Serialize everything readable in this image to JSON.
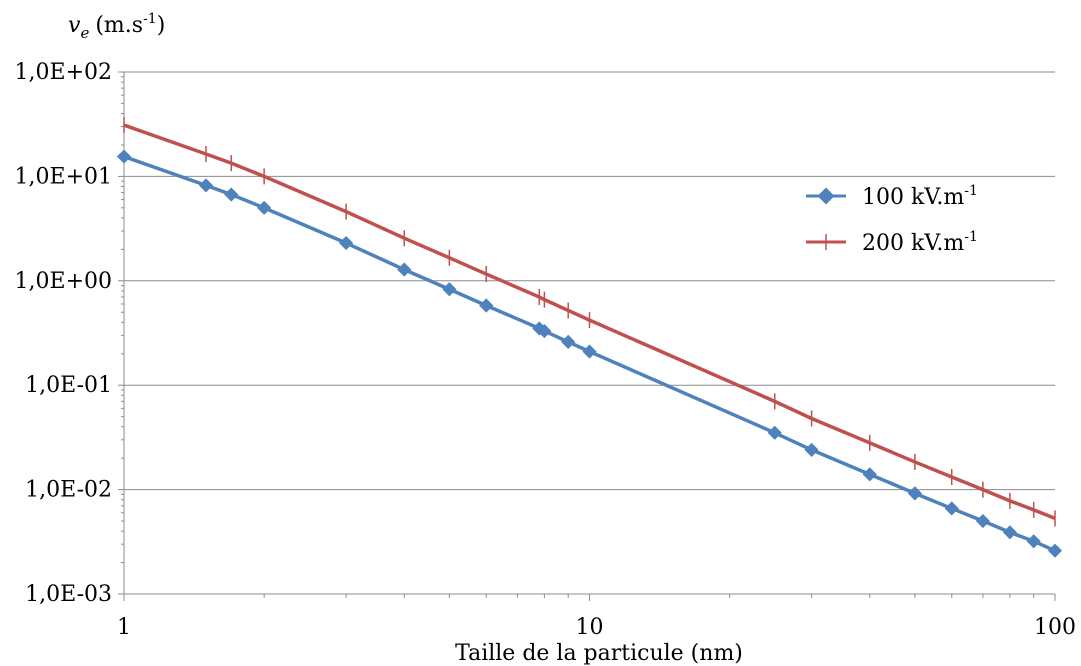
{
  "chart_data": {
    "type": "line",
    "title": "",
    "xlabel": "Taille de la particule (nm)",
    "ylabel": {
      "symbol": "v",
      "subscript": "e",
      "unit": "(m.s",
      "unit_sup": "-1",
      "unit_end": ")"
    },
    "x_scale": "log",
    "y_scale": "log",
    "xlim": [
      1,
      100
    ],
    "ylim": [
      0.001,
      100
    ],
    "x_ticks": [
      1,
      10,
      100
    ],
    "x_tick_labels": [
      "1",
      "10",
      "100"
    ],
    "y_ticks": [
      0.001,
      0.01,
      0.1,
      1,
      10,
      100
    ],
    "y_tick_labels": [
      "1,0E-03",
      "1,0E-02",
      "1,0E-01",
      "1,0E+00",
      "1,0E+01",
      "1,0E+02"
    ],
    "grid": "horizontal",
    "legend_position": "right",
    "series": [
      {
        "name": "100 kV.m",
        "name_sup": "-1",
        "color": "#4f81bd",
        "marker": "diamond",
        "x": [
          1,
          1.5,
          1.7,
          2,
          3,
          4,
          5,
          6,
          7.8,
          8,
          9,
          10,
          25,
          30,
          40,
          50,
          60,
          70,
          80,
          90,
          100
        ],
        "y": [
          15.5,
          8.2,
          6.7,
          5.0,
          2.3,
          1.28,
          0.83,
          0.58,
          0.35,
          0.33,
          0.26,
          0.21,
          0.035,
          0.024,
          0.014,
          0.0092,
          0.0066,
          0.005,
          0.0039,
          0.0032,
          0.0026
        ]
      },
      {
        "name": "200 kV.m",
        "name_sup": "-1",
        "color": "#c0504d",
        "marker": "plus",
        "x": [
          1,
          1.5,
          1.7,
          2,
          3,
          4,
          5,
          6,
          7.8,
          8,
          9,
          10,
          25,
          30,
          40,
          50,
          60,
          70,
          80,
          90,
          100
        ],
        "y": [
          31,
          16.4,
          13.4,
          10.0,
          4.6,
          2.56,
          1.66,
          1.16,
          0.7,
          0.66,
          0.52,
          0.42,
          0.07,
          0.048,
          0.028,
          0.0184,
          0.0132,
          0.01,
          0.0078,
          0.0064,
          0.0053
        ]
      }
    ]
  }
}
